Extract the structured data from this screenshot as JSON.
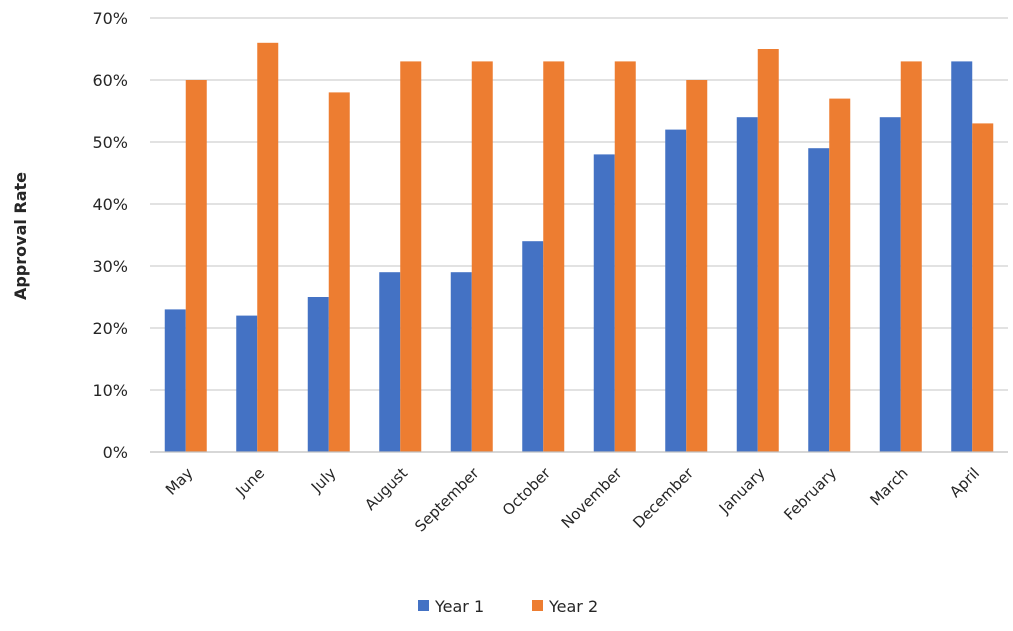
{
  "chart_data": {
    "type": "bar",
    "title": "",
    "xlabel": "",
    "ylabel": "Approval Rate",
    "ylim": [
      0,
      70
    ],
    "yticks": [
      "0%",
      "10%",
      "20%",
      "30%",
      "40%",
      "50%",
      "60%",
      "70%"
    ],
    "y_unit": "%",
    "grid": true,
    "legend_position": "bottom",
    "categories": [
      "May",
      "June",
      "July",
      "August",
      "September",
      "October",
      "November",
      "December",
      "January",
      "February",
      "March",
      "April"
    ],
    "series": [
      {
        "name": "Year 1",
        "color": "#4472c4",
        "values": [
          23,
          22,
          25,
          29,
          29,
          34,
          48,
          52,
          54,
          49,
          54,
          63
        ]
      },
      {
        "name": "Year 2",
        "color": "#ed7d31",
        "values": [
          60,
          66,
          58,
          63,
          63,
          63,
          63,
          60,
          65,
          57,
          63,
          53
        ]
      }
    ]
  }
}
